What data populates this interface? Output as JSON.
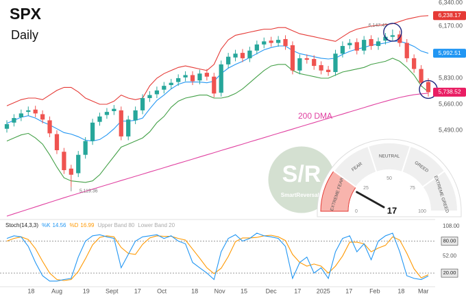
{
  "chart_data": [
    {
      "type": "candlestick",
      "title": "SPX",
      "subtitle": "Daily",
      "xlim": [
        0,
        59
      ],
      "ylim": [
        4917,
        6340
      ],
      "xticks": [
        {
          "value": 3.4,
          "label": "18"
        },
        {
          "value": 7.0,
          "label": "Aug"
        },
        {
          "value": 11.1,
          "label": "19"
        },
        {
          "value": 14.7,
          "label": "Sept"
        },
        {
          "value": 18.3,
          "label": "17"
        },
        {
          "value": 21.7,
          "label": "Oct"
        },
        {
          "value": 26.3,
          "label": "18"
        },
        {
          "value": 29.8,
          "label": "Nov"
        },
        {
          "value": 33.2,
          "label": "15"
        },
        {
          "value": 37.0,
          "label": "Dec"
        },
        {
          "value": 40.7,
          "label": "17"
        },
        {
          "value": 44.3,
          "label": "2025"
        },
        {
          "value": 47.9,
          "label": "17"
        },
        {
          "value": 51.5,
          "label": "Feb"
        },
        {
          "value": 55.2,
          "label": "18"
        },
        {
          "value": 58.3,
          "label": "Mar"
        }
      ],
      "yticks": [
        {
          "value": 6340,
          "label": "6,340.00"
        },
        {
          "value": 6170,
          "label": "6,170.00"
        },
        {
          "value": 5830,
          "label": "5,830.00"
        },
        {
          "value": 5660,
          "label": "5,660.00"
        },
        {
          "value": 5490,
          "label": "5,490.00"
        }
      ],
      "grid": false,
      "up_color": "#26a69a",
      "down_color": "#ef5350",
      "open": [
        5500,
        5540,
        5575,
        5610,
        5625,
        5595,
        5555,
        5465,
        5350,
        5240,
        5210,
        5330,
        5420,
        5545,
        5590,
        5615,
        5620,
        5450,
        5555,
        5620,
        5700,
        5725,
        5755,
        5785,
        5805,
        5835,
        5850,
        5815,
        5865,
        5840,
        5735,
        5920,
        5965,
        5995,
        5960,
        6010,
        6050,
        6075,
        6060,
        6085,
        6045,
        5880,
        5960,
        5955,
        5915,
        5885,
        5870,
        5990,
        6045,
        6065,
        6010,
        6085,
        6040,
        6075,
        6100,
        6115,
        6060,
        5960,
        5890,
        5805
      ],
      "high": [
        5555,
        5595,
        5625,
        5645,
        5650,
        5620,
        5580,
        5490,
        5375,
        5265,
        5355,
        5445,
        5565,
        5605,
        5635,
        5655,
        5645,
        5585,
        5645,
        5725,
        5745,
        5775,
        5805,
        5825,
        5855,
        5875,
        5875,
        5885,
        5890,
        5865,
        5945,
        5995,
        6015,
        6020,
        6035,
        6075,
        6095,
        6100,
        6105,
        6110,
        6070,
        5985,
        5985,
        5980,
        5940,
        5910,
        6015,
        6070,
        6085,
        6090,
        6105,
        6110,
        6095,
        6125,
        6147.43,
        6140,
        6085,
        5985,
        5915,
        5830
      ],
      "low": [
        5475,
        5515,
        5550,
        5585,
        5575,
        5535,
        5445,
        5335,
        5205,
        5119.36,
        5185,
        5305,
        5395,
        5520,
        5565,
        5590,
        5425,
        5425,
        5530,
        5595,
        5675,
        5700,
        5730,
        5760,
        5780,
        5810,
        5785,
        5790,
        5815,
        5705,
        5710,
        5895,
        5940,
        5935,
        5935,
        5985,
        6025,
        6035,
        6035,
        6015,
        5855,
        5855,
        5925,
        5885,
        5855,
        5845,
        5845,
        5965,
        6020,
        5985,
        5985,
        6015,
        6015,
        6050,
        6075,
        6035,
        5935,
        5865,
        5775,
        5710
      ],
      "close": [
        5530,
        5570,
        5600,
        5620,
        5600,
        5560,
        5470,
        5360,
        5230,
        5200,
        5330,
        5420,
        5540,
        5580,
        5610,
        5630,
        5450,
        5560,
        5620,
        5700,
        5720,
        5750,
        5780,
        5800,
        5830,
        5850,
        5810,
        5860,
        5840,
        5730,
        5920,
        5970,
        5990,
        5960,
        6010,
        6050,
        6070,
        6060,
        6080,
        6040,
        5880,
        5960,
        5950,
        5910,
        5880,
        5870,
        5990,
        6040,
        6060,
        6010,
        6080,
        6040,
        6070,
        6100,
        6110,
        6060,
        5960,
        5890,
        5800,
        5738.52
      ],
      "close_label": "5,738.52",
      "close_tag_color": "#e91e63",
      "low_label": "5,119.36",
      "high_label": "6,147.43",
      "upper_band": {
        "color": "#e53935",
        "last_label": "6,238.17",
        "values": [
          5650,
          5670,
          5690,
          5700,
          5700,
          5690,
          5720,
          5750,
          5770,
          5770,
          5740,
          5700,
          5680,
          5660,
          5660,
          5680,
          5720,
          5700,
          5690,
          5700,
          5780,
          5830,
          5860,
          5880,
          5900,
          5910,
          5900,
          5890,
          5880,
          5920,
          6020,
          6080,
          6110,
          6120,
          6130,
          6140,
          6150,
          6150,
          6160,
          6160,
          6140,
          6120,
          6110,
          6100,
          6090,
          6080,
          6070,
          6100,
          6130,
          6150,
          6160,
          6170,
          6175,
          6180,
          6185,
          6200,
          6215,
          6225,
          6235,
          6238.17
        ]
      },
      "middle_band": {
        "color": "#2196f3",
        "last_label": "5,992.51",
        "values": [
          5535,
          5555,
          5575,
          5585,
          5570,
          5545,
          5525,
          5500,
          5475,
          5465,
          5448,
          5425,
          5420,
          5430,
          5460,
          5500,
          5550,
          5550,
          5555,
          5570,
          5630,
          5685,
          5720,
          5760,
          5790,
          5805,
          5805,
          5805,
          5800,
          5810,
          5860,
          5895,
          5920,
          5940,
          5965,
          5990,
          6015,
          6030,
          6040,
          6040,
          6010,
          5990,
          5980,
          5970,
          5960,
          5955,
          5960,
          5985,
          6005,
          6020,
          6030,
          6045,
          6052,
          6060,
          6072,
          6070,
          6057,
          6037,
          6007,
          5992.51
        ]
      },
      "lower_band": {
        "color": "#43a047",
        "values": [
          5420,
          5440,
          5460,
          5470,
          5440,
          5400,
          5330,
          5250,
          5180,
          5160,
          5155,
          5150,
          5160,
          5200,
          5260,
          5320,
          5380,
          5400,
          5420,
          5440,
          5480,
          5540,
          5580,
          5640,
          5680,
          5700,
          5710,
          5720,
          5720,
          5700,
          5700,
          5710,
          5730,
          5760,
          5800,
          5840,
          5880,
          5910,
          5920,
          5920,
          5880,
          5860,
          5850,
          5840,
          5830,
          5830,
          5850,
          5870,
          5880,
          5890,
          5900,
          5920,
          5930,
          5940,
          5960,
          5940,
          5900,
          5850,
          5780,
          5740
        ]
      },
      "dma200": {
        "label": "200 DMA",
        "color": "#e040a0",
        "values": [
          4930,
          4945,
          4960,
          4975,
          4990,
          5005,
          5020,
          5035,
          5050,
          5064,
          5078,
          5092,
          5106,
          5120,
          5134,
          5148,
          5162,
          5176,
          5190,
          5204,
          5218,
          5232,
          5246,
          5260,
          5274,
          5288,
          5302,
          5316,
          5330,
          5344,
          5358,
          5372,
          5386,
          5400,
          5414,
          5428,
          5442,
          5456,
          5470,
          5484,
          5498,
          5512,
          5526,
          5540,
          5554,
          5568,
          5582,
          5596,
          5610,
          5624,
          5638,
          5652,
          5666,
          5679,
          5692,
          5704,
          5714,
          5722,
          5728,
          5732
        ]
      },
      "watermark": {
        "title": "S/R",
        "subtitle": "SmartReversals"
      }
    },
    {
      "type": "line",
      "title": "Stoch(14,3,3)",
      "ylim": [
        -3,
        118
      ],
      "yticks": [
        {
          "value": 108,
          "label": "108.00"
        },
        {
          "value": 52,
          "label": "52.00"
        }
      ],
      "bands": [
        {
          "value": 80,
          "label": "80.00"
        },
        {
          "value": 20,
          "label": "20.00"
        }
      ],
      "band_notes": [
        "Upper Band 80",
        "Lower Band 20"
      ],
      "series": [
        {
          "name": "%K",
          "color": "#2196f3",
          "values": [
            85,
            90,
            88,
            70,
            40,
            15,
            5,
            5,
            8,
            10,
            50,
            80,
            90,
            92,
            88,
            85,
            30,
            55,
            80,
            88,
            90,
            92,
            85,
            90,
            80,
            75,
            40,
            30,
            20,
            8,
            60,
            85,
            92,
            80,
            85,
            95,
            90,
            88,
            85,
            70,
            10,
            40,
            50,
            20,
            30,
            10,
            60,
            85,
            90,
            60,
            75,
            45,
            80,
            90,
            95,
            60,
            15,
            10,
            8,
            14.56
          ]
        },
        {
          "name": "%D",
          "color": "#ff9800",
          "values": [
            80,
            85,
            88,
            83,
            66,
            42,
            20,
            8,
            6,
            8,
            23,
            47,
            73,
            87,
            90,
            88,
            68,
            57,
            55,
            74,
            86,
            90,
            89,
            89,
            85,
            82,
            65,
            48,
            30,
            19,
            29,
            51,
            79,
            86,
            86,
            87,
            90,
            91,
            88,
            81,
            55,
            40,
            33,
            37,
            33,
            20,
            33,
            52,
            78,
            78,
            75,
            60,
            67,
            72,
            88,
            82,
            57,
            28,
            11,
            16.99
          ]
        }
      ]
    },
    {
      "type": "gauge",
      "lim": [
        0,
        100
      ],
      "value": 17,
      "ticks": [
        0,
        25,
        50,
        75,
        100
      ],
      "zones": [
        "EXTREME FEAR",
        "FEAR",
        "NEUTRAL",
        "GREED",
        "EXTREME GREED"
      ],
      "highlight_color": "#f8b4ad"
    }
  ]
}
